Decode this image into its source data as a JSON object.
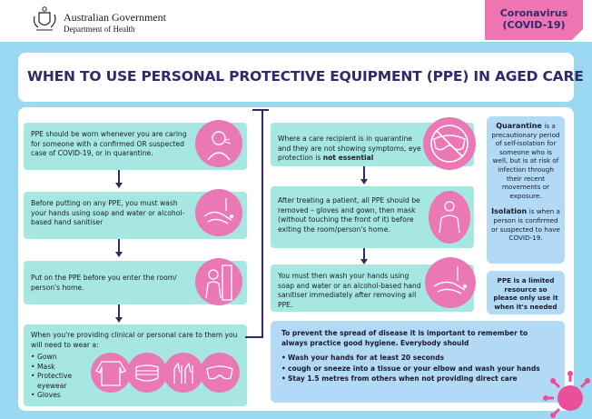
{
  "header": {
    "gov_line1": "Australian Government",
    "gov_line2": "Department of Health",
    "badge_line1": "Coronavirus",
    "badge_line2": "(COVID-19)"
  },
  "title": "WHEN TO USE PERSONAL PROTECTIVE EQUIPMENT (PPE) IN AGED CARE",
  "left_steps": [
    {
      "text_a": "PPE should be worn whenever you are caring for someone with a confirmed OR suspected case of COVID-19, or in quarantine.",
      "icon": "person-coughing-icon"
    },
    {
      "text_a": "Before putting on any PPE, you must wash your hands using soap and water or alcohol-based hand sanitiser",
      "icon": "handwash-icon"
    },
    {
      "text_a": "Put on the PPE before you enter the room/ person's home.",
      "icon": "person-at-door-icon"
    }
  ],
  "ppe_list": {
    "intro": "When you're providing clinical or personal care to them you will need to wear a:",
    "items": [
      "Gown",
      "Mask",
      "Protective eyewear",
      "Gloves"
    ],
    "icons": [
      "gown-icon",
      "mask-icon",
      "gloves-icon",
      "goggles-icon"
    ]
  },
  "right_steps": [
    {
      "text_a": "Where a care recipient is in quarantine and they are not showing symptoms, eye protection is ",
      "text_b": "not essential",
      "icon": "no-goggles-icon"
    },
    {
      "text_a": "After treating a patient, all PPE should be removed – gloves and gown, then mask (without touching the front of it) before exiting the room/person's home.",
      "icon": "person-removing-ppe-icon"
    },
    {
      "text_a": "You must then wash your hands using soap and water or an alcohol-based hand sanitiser immediately after removing all PPE.",
      "icon": "handwash-icon"
    }
  ],
  "quarantine_box": {
    "q_term": "Quarantine",
    "q_def": "is a precautionary period of self-isolation for someone who is well, but is at risk of infection through their recent movements or exposure.",
    "i_term": "Isolation",
    "i_def": "is when a person is confirmed or suspected to have COVID-19."
  },
  "limited_box": "PPE is a limited resource so please only use it when it's needed",
  "hygiene": {
    "intro": "To prevent the spread of disease it is important to remember to always practice good hygiene. Everybody should",
    "items": [
      "Wash your hands for at least 20 seconds",
      "cough or sneeze into a tissue or your elbow and wash your hands",
      "Stay 1.5 metres from others when not providing direct care"
    ]
  },
  "colors": {
    "background": "#9bd9f2",
    "navy": "#2e2a6b",
    "teal_card": "#a6e8e1",
    "pink": "#ea78b5",
    "blue_box": "#b2d9f5"
  }
}
